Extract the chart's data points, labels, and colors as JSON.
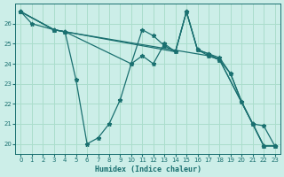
{
  "xlabel": "Humidex (Indice chaleur)",
  "bg_color": "#cceee8",
  "grid_color": "#aaddcc",
  "line_color": "#1a7070",
  "xlim": [
    -0.5,
    23.5
  ],
  "ylim": [
    19.5,
    27.0
  ],
  "yticks": [
    20,
    21,
    22,
    23,
    24,
    25,
    26
  ],
  "xticks": [
    0,
    1,
    2,
    3,
    4,
    5,
    6,
    7,
    8,
    9,
    10,
    11,
    12,
    13,
    14,
    15,
    16,
    17,
    18,
    19,
    20,
    21,
    22,
    23
  ],
  "lines": [
    {
      "x": [
        0,
        1,
        3,
        4,
        5,
        6,
        7,
        8,
        9,
        10,
        11,
        12,
        13,
        14,
        15,
        16,
        17,
        18,
        19,
        20,
        21,
        22,
        23
      ],
      "y": [
        26.6,
        26.0,
        25.7,
        25.6,
        23.2,
        20.0,
        20.3,
        21.0,
        22.2,
        24.0,
        25.7,
        25.4,
        24.9,
        24.6,
        26.6,
        24.7,
        24.5,
        24.2,
        23.5,
        22.1,
        21.0,
        20.9,
        19.9
      ]
    },
    {
      "x": [
        0,
        3,
        4,
        10,
        11,
        12,
        13,
        14,
        15,
        16,
        17,
        18,
        19,
        20,
        21,
        22,
        23
      ],
      "y": [
        26.6,
        25.7,
        25.6,
        24.0,
        24.4,
        24.0,
        25.0,
        24.6,
        26.6,
        24.7,
        24.5,
        24.3,
        23.5,
        22.1,
        21.0,
        19.9,
        19.9
      ]
    },
    {
      "x": [
        0,
        3,
        4,
        14,
        15,
        16,
        17,
        18,
        21,
        22,
        23
      ],
      "y": [
        26.6,
        25.7,
        25.6,
        24.6,
        26.6,
        24.7,
        24.4,
        24.2,
        21.0,
        19.9,
        19.9
      ]
    },
    {
      "x": [
        0,
        3,
        4,
        17,
        18,
        21,
        22,
        23
      ],
      "y": [
        26.6,
        25.7,
        25.6,
        24.4,
        24.2,
        21.0,
        19.9,
        19.9
      ]
    }
  ]
}
